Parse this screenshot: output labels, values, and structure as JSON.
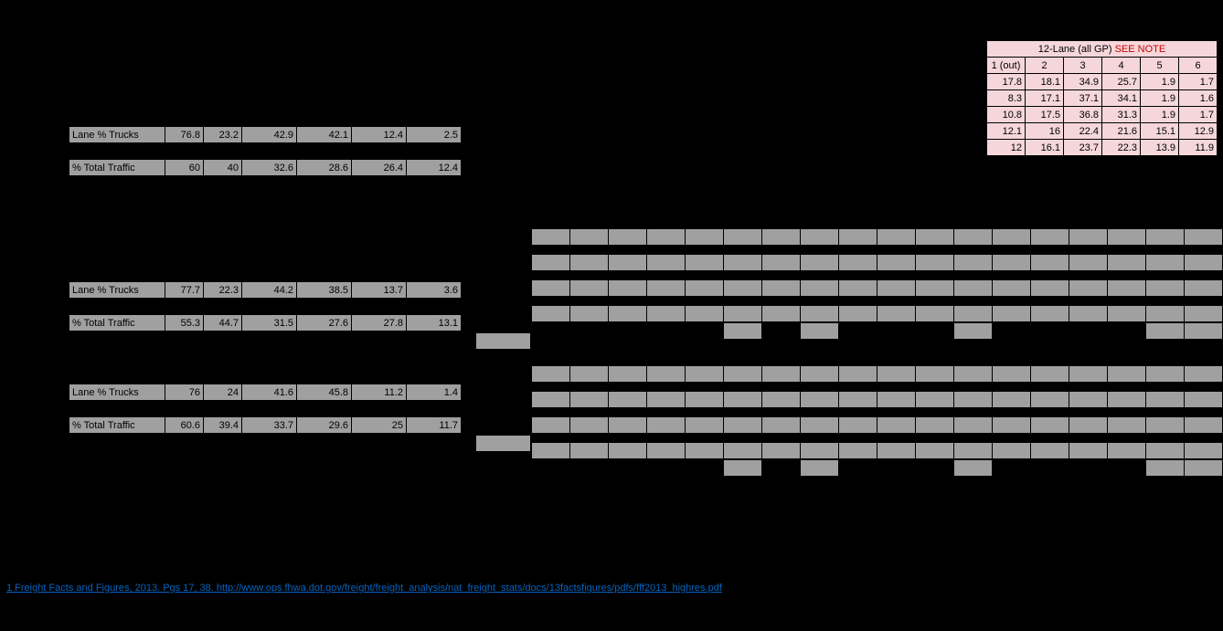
{
  "labels": {
    "lane_pct_trucks": "Lane % Trucks",
    "pct_total_traffic": "% Total Traffic"
  },
  "block1": {
    "trucks": [
      76.8,
      23.2,
      42.9,
      42.1,
      12.4,
      2.5
    ],
    "traffic": [
      60,
      40,
      32.6,
      28.6,
      26.4,
      12.4
    ]
  },
  "block2": {
    "trucks": [
      77.7,
      22.3,
      44.2,
      38.5,
      13.7,
      3.6
    ],
    "traffic": [
      55.3,
      44.7,
      31.5,
      27.6,
      27.8,
      13.1
    ]
  },
  "block3": {
    "trucks": [
      76,
      24,
      41.6,
      45.8,
      11.2,
      1.4
    ],
    "traffic": [
      60.6,
      39.4,
      33.7,
      29.6,
      25,
      11.7
    ]
  },
  "pink_table": {
    "title_prefix": "12-Lane (all GP) ",
    "title_note": "SEE NOTE",
    "headers": [
      "1 (out)",
      "2",
      "3",
      "4",
      "5",
      "6"
    ],
    "rows": [
      [
        17.8,
        18.1,
        34.9,
        25.7,
        1.9,
        1.7
      ],
      [
        8.3,
        17.1,
        37.1,
        34.1,
        1.9,
        1.6
      ],
      [
        10.8,
        17.5,
        36.8,
        31.3,
        1.9,
        1.7
      ],
      [
        12.1,
        16,
        22.4,
        21.6,
        15.1,
        12.9
      ],
      [
        12,
        16.1,
        23.7,
        22.3,
        13.9,
        11.9
      ]
    ]
  },
  "footnote": {
    "text": "1 Freight Facts and Figures, 2013.   Pgs 17, 38. http://www.ops.fhwa.dot.gov/freight/freight_analysis/nat_freight_stats/docs/13factsfigures/pdfs/fff2013_highres.pdf",
    "href": "#"
  },
  "colors": {
    "background": "#000000",
    "gray_cell": "#a0a0a0",
    "pink_cell": "#f5d7db",
    "red_text": "#cc0000",
    "link": "#0563c1",
    "border": "#000000"
  },
  "layout": {
    "left_label_width": 105,
    "data_cell_width": 42,
    "small_cell_width": 42,
    "pink_cell_width": 42
  }
}
